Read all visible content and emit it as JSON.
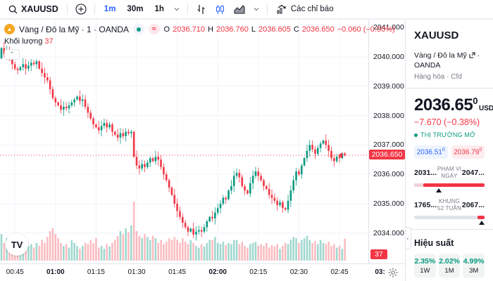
{
  "toolbar": {
    "symbol": "XAUUSD",
    "intervals": [
      "1m",
      "30m",
      "1h"
    ],
    "active_interval": "1m",
    "indicators_label": "Các chỉ báo"
  },
  "legend": {
    "title": "Vàng / Đô la Mỹ · 1 · OANDA",
    "o_label": "O",
    "o": "2036.710",
    "h_label": "H",
    "h": "2036.760",
    "l_label": "L",
    "l": "2036.605",
    "c_label": "C",
    "c": "2036.650",
    "change": "−0.060 (−0.00%)",
    "volume_label": "Khối lượng",
    "volume": "37"
  },
  "price_axis": {
    "labels": [
      {
        "text": "2041.000",
        "price": 2041
      },
      {
        "text": "2040.000",
        "price": 2040
      },
      {
        "text": "2039.000",
        "price": 2039
      },
      {
        "text": "2038.000",
        "price": 2038
      },
      {
        "text": "2037.000",
        "price": 2037
      },
      {
        "text": "2036.000",
        "price": 2036
      },
      {
        "text": "2035.000",
        "price": 2035
      },
      {
        "text": "2034.000",
        "price": 2034
      }
    ],
    "price_tag": {
      "text": "2036.650",
      "price": 2036.65
    },
    "volume_tag": {
      "text": "37"
    }
  },
  "time_axis": {
    "labels": [
      {
        "text": "00:45",
        "bold": false
      },
      {
        "text": "01:00",
        "bold": true
      },
      {
        "text": "01:15",
        "bold": false
      },
      {
        "text": "01:30",
        "bold": false
      },
      {
        "text": "01:45",
        "bold": false
      },
      {
        "text": "02:00",
        "bold": true
      },
      {
        "text": "02:15",
        "bold": false
      },
      {
        "text": "02:30",
        "bold": false
      },
      {
        "text": "02:45",
        "bold": false
      },
      {
        "text": "03:",
        "bold": true
      }
    ]
  },
  "panel": {
    "symbol": "XAUUSD",
    "description": "Vàng / Đô la Mỹ",
    "exchange": "· OANDA",
    "type_line": "Hàng hóa · Cfd",
    "price_main": "2036.65",
    "price_sup": "0",
    "currency": "USD",
    "change": "−7.670 (−0.38%)",
    "market_status": "THỊ TRƯỜNG MỞ",
    "bid": "2036.51",
    "bid_sup": "0",
    "ask": "2036.79",
    "ask_sup": "0",
    "day_range": {
      "low": "2031...",
      "label": "PHẠM VI NGÀY",
      "high": "2047..."
    },
    "week52": {
      "low": "1765...",
      "label": "KHUNG 52 TUẦN",
      "high": "2067..."
    },
    "perf_title": "Hiệu suất",
    "perf": [
      {
        "value": "2.35%",
        "label": "1W"
      },
      {
        "value": "2.02%",
        "label": "1M"
      },
      {
        "value": "4.99%",
        "label": "3M"
      }
    ]
  },
  "colors": {
    "up": "#089981",
    "down": "#f23645",
    "accent": "#2962ff",
    "tag": "#f23645"
  },
  "chart_data": {
    "type": "candlestick",
    "symbol": "XAUUSD",
    "interval": "1m",
    "x_start": "00:40",
    "current_price": 2036.65,
    "open_first": 2039.95,
    "last_ohlc": {
      "o": 2036.71,
      "h": 2036.76,
      "l": 2036.605,
      "c": 2036.65
    },
    "y_gridlines": [
      2034,
      2035,
      2036,
      2037,
      2038,
      2039,
      2040,
      2041
    ],
    "closes": [
      2040.3,
      2040.1,
      2040.2,
      2039.95,
      2039.75,
      2039.6,
      2039.55,
      2039.65,
      2039.75,
      2039.6,
      2039.7,
      2039.8,
      2039.75,
      2039.85,
      2039.6,
      2039.45,
      2039.3,
      2039.2,
      2038.9,
      2038.6,
      2038.45,
      2038.35,
      2038.2,
      2038.3,
      2038.25,
      2038.35,
      2038.45,
      2038.55,
      2038.65,
      2038.5,
      2038.55,
      2038.3,
      2038.1,
      2037.9,
      2037.7,
      2037.6,
      2037.5,
      2037.65,
      2037.75,
      2037.6,
      2037.7,
      2037.45,
      2037.35,
      2037.25,
      2037.4,
      2037.3,
      2037.45,
      2037.4,
      2037.45,
      2036.6,
      2036.3,
      2036.2,
      2036.35,
      2036.25,
      2036.4,
      2036.55,
      2036.45,
      2036.6,
      2036.5,
      2036.25,
      2036.0,
      2035.8,
      2035.55,
      2035.3,
      2035.0,
      2034.75,
      2034.55,
      2034.35,
      2034.2,
      2034.05,
      2034.15,
      2033.95,
      2034.05,
      2034.1,
      2034.05,
      2034.2,
      2034.4,
      2034.55,
      2034.5,
      2034.7,
      2034.85,
      2035.0,
      2035.2,
      2035.15,
      2035.45,
      2035.6,
      2035.95,
      2036.05,
      2035.9,
      2035.6,
      2035.45,
      2035.35,
      2035.7,
      2035.95,
      2036.1,
      2035.95,
      2035.8,
      2035.6,
      2035.5,
      2035.3,
      2035.2,
      2035.1,
      2034.95,
      2035.05,
      2034.85,
      2034.8,
      2035.1,
      2035.45,
      2035.8,
      2036.1,
      2036.0,
      2036.3,
      2036.55,
      2036.8,
      2037.0,
      2036.85,
      2036.7,
      2036.9,
      2037.05,
      2037.15,
      2037.0,
      2036.8,
      2036.55,
      2036.45,
      2036.6,
      2036.55,
      2036.71,
      2036.65
    ],
    "volumes": [
      45,
      30,
      38,
      28,
      35,
      25,
      20,
      22,
      30,
      18,
      25,
      28,
      22,
      30,
      25,
      35,
      30,
      40,
      50,
      55,
      45,
      38,
      30,
      25,
      28,
      22,
      35,
      30,
      25,
      20,
      25,
      30,
      28,
      35,
      30,
      38,
      22,
      25,
      20,
      28,
      24,
      30,
      35,
      42,
      50,
      45,
      55,
      48,
      60,
      100,
      50,
      42,
      38,
      45,
      40,
      35,
      42,
      38,
      30,
      35,
      28,
      32,
      38,
      35,
      40,
      35,
      30,
      38,
      32,
      28,
      35,
      30,
      25,
      22,
      28,
      24,
      30,
      35,
      35,
      40,
      30,
      28,
      32,
      26,
      30,
      28,
      35,
      35,
      28,
      32,
      25,
      22,
      28,
      30,
      32,
      25,
      28,
      25,
      30,
      22,
      26,
      24,
      28,
      20,
      25,
      30,
      28,
      35,
      40,
      38,
      30,
      35,
      38,
      42,
      35,
      30,
      33,
      28,
      35,
      30,
      28,
      32,
      25,
      28,
      22,
      25,
      20,
      37
    ]
  }
}
